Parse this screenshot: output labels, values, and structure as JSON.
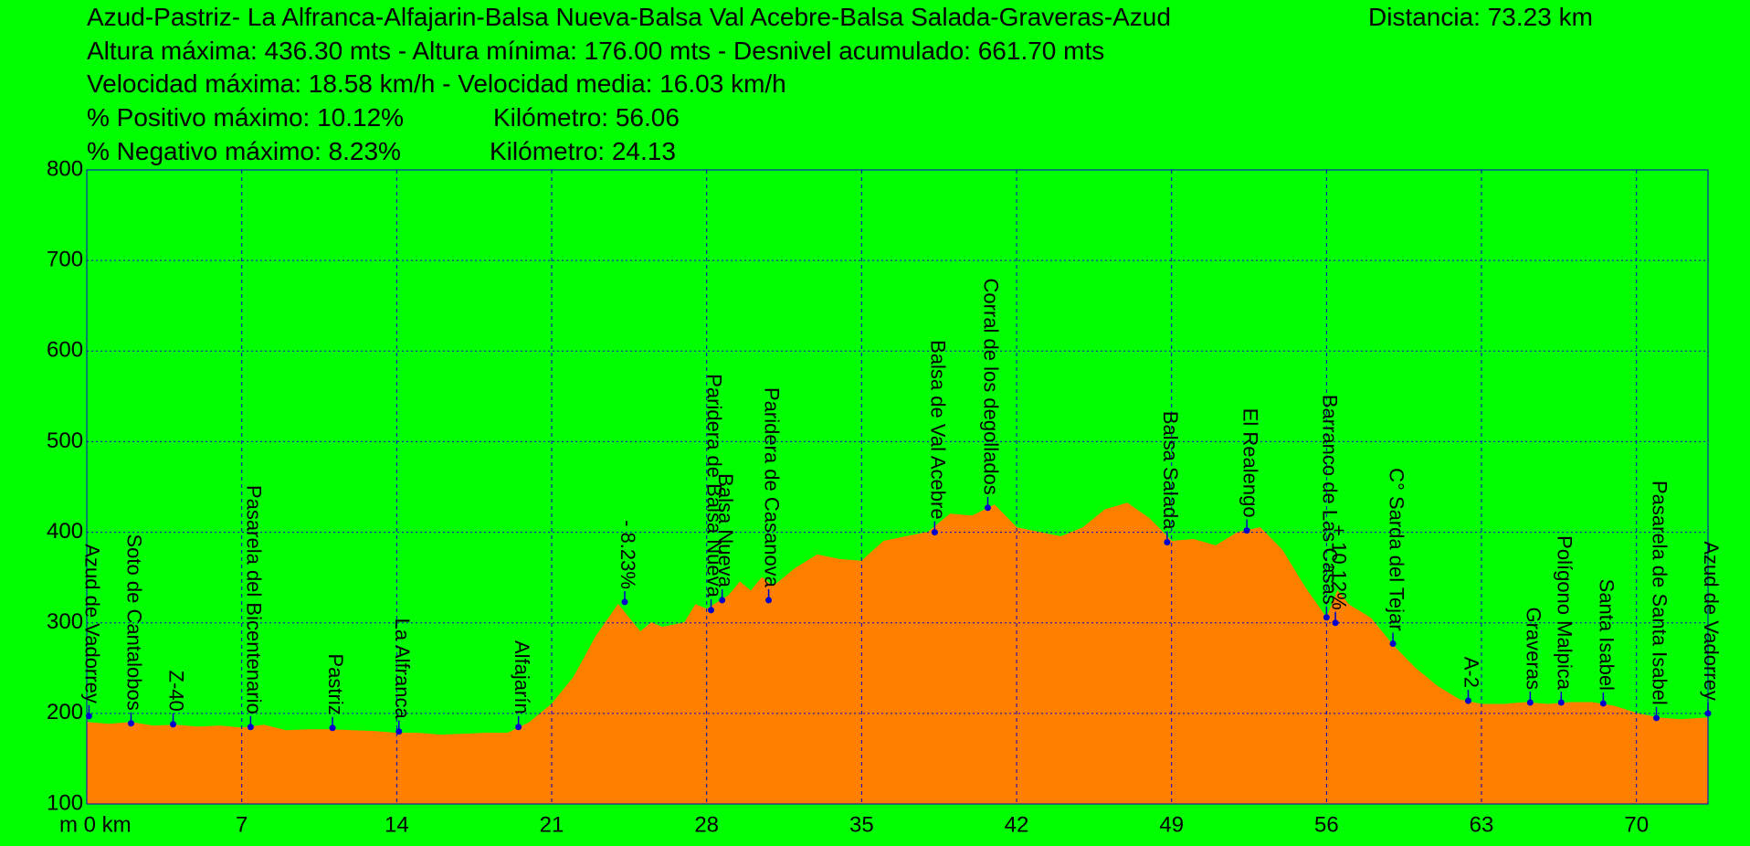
{
  "chart_data": {
    "type": "area",
    "title": "Azud-Pastriz- La Alfranca-Alfajarin-Balsa Nueva-Balsa Val Acebre-Balsa Salada-Graveras-Azud",
    "distance": "Distancia: 73.23 km",
    "info_lines": [
      "Altura máxima: 436.30 mts - Altura mínima: 176.00 mts - Desnivel acumulado: 661.70 mts",
      "Velocidad máxima: 18.58 km/h - Velocidad media: 16.03 km/h"
    ],
    "grade_lines": [
      [
        "% Positivo máximo: 10.12%",
        "Kilómetro: 56.06"
      ],
      [
        "% Negativo máximo: 8.23%",
        "Kilómetro: 24.13"
      ]
    ],
    "color": "#ff8000",
    "grid": true,
    "x": [
      0,
      1,
      2,
      3,
      4,
      5,
      6,
      7,
      8,
      9,
      10,
      11,
      12,
      13,
      14,
      15,
      16,
      17,
      18,
      19,
      20,
      21,
      22,
      23,
      24,
      25,
      25.5,
      26,
      27,
      27.5,
      28,
      29,
      29.5,
      30,
      30.5,
      31,
      32,
      33,
      34,
      35,
      36,
      37,
      38,
      39,
      40,
      41,
      42,
      43,
      44,
      45,
      46,
      47,
      48,
      49,
      50,
      51,
      52,
      53,
      54,
      55,
      56,
      56.5,
      57,
      58,
      59,
      60,
      61,
      62,
      63,
      64,
      65,
      66,
      67,
      68,
      69,
      70,
      71,
      72,
      73.23
    ],
    "values": [
      190,
      188,
      190,
      186,
      187,
      185,
      186,
      184,
      187,
      181,
      182,
      182,
      181,
      180,
      178,
      178,
      176,
      177,
      178,
      178,
      190,
      210,
      240,
      285,
      320,
      290,
      300,
      295,
      300,
      320,
      315,
      330,
      345,
      335,
      350,
      340,
      360,
      375,
      370,
      368,
      390,
      395,
      400,
      420,
      418,
      430,
      405,
      400,
      395,
      405,
      425,
      432,
      415,
      390,
      392,
      385,
      400,
      405,
      380,
      340,
      305,
      335,
      320,
      305,
      275,
      250,
      230,
      215,
      210,
      210,
      212,
      210,
      212,
      212,
      208,
      200,
      195,
      193,
      195
    ],
    "waypoints": [
      {
        "label": "Azud de Vadorrey",
        "x": 0.1,
        "y": 197
      },
      {
        "label": "Soto de Cantalobos",
        "x": 2.0,
        "y": 189
      },
      {
        "label": "Z-40",
        "x": 3.9,
        "y": 188
      },
      {
        "label": "Pasarela del Bicentenario",
        "x": 7.4,
        "y": 185
      },
      {
        "label": "Pastriz",
        "x": 11.1,
        "y": 184
      },
      {
        "label": "La Alfranca",
        "x": 14.1,
        "y": 180
      },
      {
        "label": "Alfajarín",
        "x": 19.5,
        "y": 185
      },
      {
        "label": "- 8.23%",
        "x": 24.3,
        "y": 323
      },
      {
        "label": "Paridera de Balsa Nueva",
        "x": 28.2,
        "y": 314
      },
      {
        "label": "Balsa Nueva",
        "x": 28.7,
        "y": 325
      },
      {
        "label": "Paridera de Casanova",
        "x": 30.8,
        "y": 325
      },
      {
        "label": "Balsa de Val Acebre",
        "x": 38.3,
        "y": 400
      },
      {
        "label": "Corral de los degollados",
        "x": 40.7,
        "y": 427
      },
      {
        "label": "Balsa Salada",
        "x": 48.8,
        "y": 389
      },
      {
        "label": "El Realengo",
        "x": 52.4,
        "y": 402
      },
      {
        "label": "Barranco de Las Casas",
        "x": 56.0,
        "y": 306
      },
      {
        "label": "+ 10,12%",
        "x": 56.4,
        "y": 300
      },
      {
        "label": "C° Sarda del Tejar",
        "x": 59.0,
        "y": 277
      },
      {
        "label": "A-2",
        "x": 62.4,
        "y": 214
      },
      {
        "label": "Graveras",
        "x": 65.2,
        "y": 212
      },
      {
        "label": "Polígono Malpica",
        "x": 66.6,
        "y": 212
      },
      {
        "label": "Santa Isabel",
        "x": 68.5,
        "y": 211
      },
      {
        "label": "Pasarela de Santa Isabel",
        "x": 70.9,
        "y": 195
      },
      {
        "label": "Azud de Vadorrey",
        "x": 73.23,
        "y": 200
      }
    ],
    "xlim": [
      0,
      73.23
    ],
    "xticks": [
      {
        "value": 0,
        "label": "m 0 km"
      },
      7,
      14,
      21,
      28,
      35,
      42,
      49,
      56,
      63,
      70
    ],
    "ylim": [
      100,
      800
    ],
    "yticks": [
      100,
      200,
      300,
      400,
      500,
      600,
      700,
      800
    ]
  }
}
